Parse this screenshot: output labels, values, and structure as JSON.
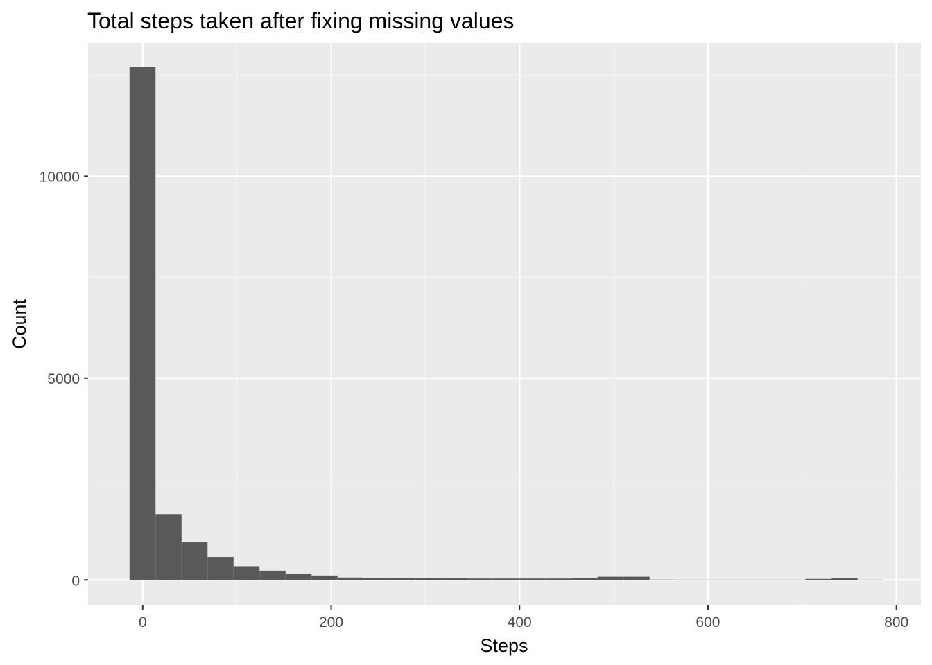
{
  "chart_data": {
    "type": "bar",
    "subtype": "histogram",
    "title": "Total steps taken after fixing missing values",
    "xlabel": "Steps",
    "ylabel": "Count",
    "xlim": [
      -58,
      826
    ],
    "ylim": [
      -630,
      13300
    ],
    "x_ticks": [
      0,
      200,
      400,
      600,
      800
    ],
    "x_tick_labels": [
      "0",
      "200",
      "400",
      "600",
      "800"
    ],
    "y_ticks": [
      0,
      5000,
      10000
    ],
    "y_tick_labels": [
      "0",
      "5000",
      "10000"
    ],
    "y_minor_ticks": [
      2500,
      7500,
      12500
    ],
    "x_minor_ticks": [
      100,
      300,
      500,
      700
    ],
    "grid": true,
    "bin_width": 27.6,
    "bins": [
      {
        "x_start": -14,
        "count": 12700
      },
      {
        "x_start": 13.6,
        "count": 1630
      },
      {
        "x_start": 41.2,
        "count": 930
      },
      {
        "x_start": 68.8,
        "count": 570
      },
      {
        "x_start": 96.4,
        "count": 340
      },
      {
        "x_start": 124,
        "count": 230
      },
      {
        "x_start": 151.6,
        "count": 160
      },
      {
        "x_start": 179.2,
        "count": 110
      },
      {
        "x_start": 206.8,
        "count": 60
      },
      {
        "x_start": 234.4,
        "count": 55
      },
      {
        "x_start": 262,
        "count": 55
      },
      {
        "x_start": 289.6,
        "count": 40
      },
      {
        "x_start": 317.2,
        "count": 40
      },
      {
        "x_start": 344.8,
        "count": 35
      },
      {
        "x_start": 372.4,
        "count": 35
      },
      {
        "x_start": 400,
        "count": 35
      },
      {
        "x_start": 427.6,
        "count": 35
      },
      {
        "x_start": 455.2,
        "count": 55
      },
      {
        "x_start": 482.8,
        "count": 80
      },
      {
        "x_start": 510.4,
        "count": 80
      },
      {
        "x_start": 538,
        "count": 10
      },
      {
        "x_start": 565.6,
        "count": 8
      },
      {
        "x_start": 593.2,
        "count": 8
      },
      {
        "x_start": 620.8,
        "count": 8
      },
      {
        "x_start": 648.4,
        "count": 8
      },
      {
        "x_start": 676,
        "count": 8
      },
      {
        "x_start": 703.6,
        "count": 25
      },
      {
        "x_start": 731.2,
        "count": 40
      },
      {
        "x_start": 758.8,
        "count": 8
      }
    ],
    "colors": {
      "panel_background": "#ebebeb",
      "grid_major": "#ffffff",
      "grid_minor": "#f5f5f5",
      "bar_fill": "#595959",
      "tick_label": "#4d4d4d",
      "axis_title": "#000000",
      "tick_mark": "#333333"
    }
  }
}
